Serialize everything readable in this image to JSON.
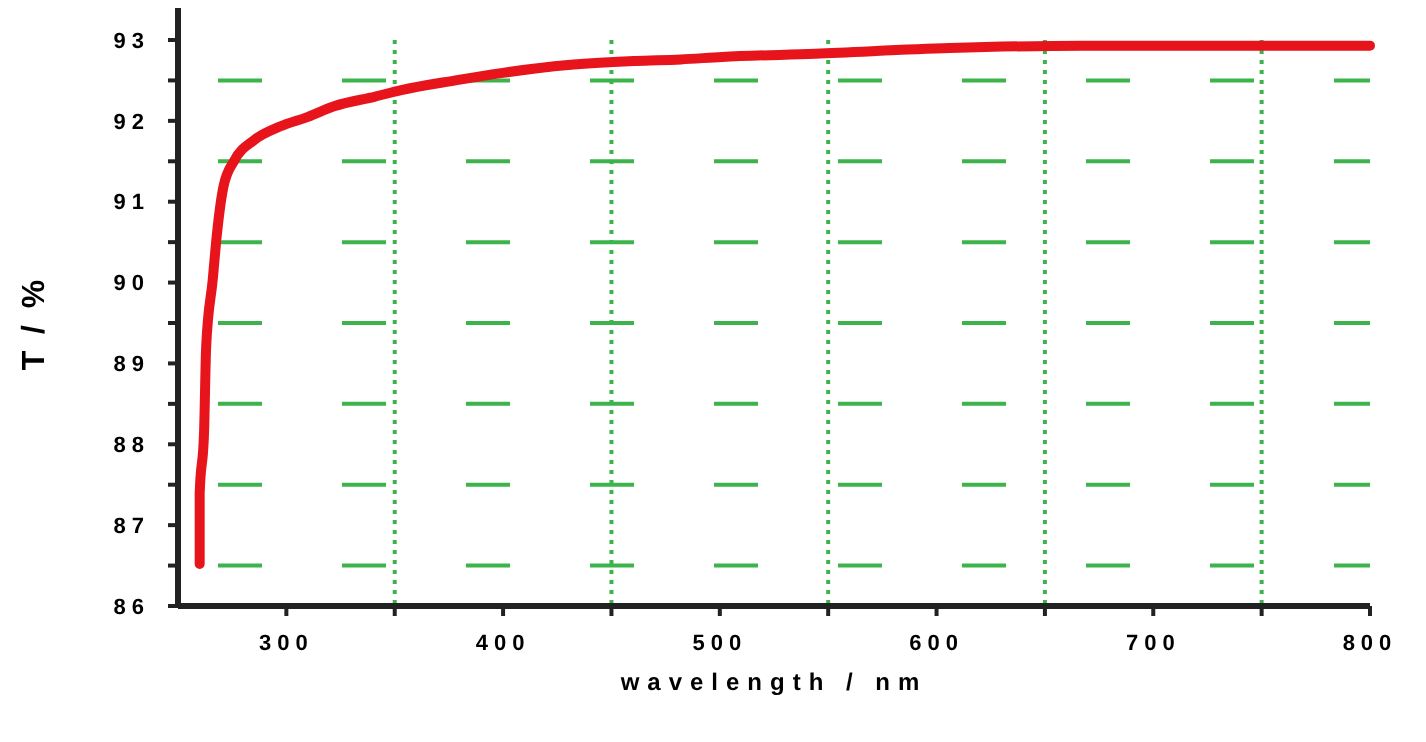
{
  "chart_data": {
    "type": "line",
    "xlabel": "wavelength / nm",
    "ylabel": "T / %",
    "xlim": [
      250,
      800
    ],
    "ylim": [
      86,
      93
    ],
    "xticks": [
      300,
      {
        "value": 350,
        "label": null
      },
      400,
      {
        "value": 450,
        "label": null
      },
      500,
      {
        "value": 550,
        "label": null
      },
      600,
      {
        "value": 650,
        "label": null
      },
      700,
      {
        "value": 750,
        "label": null
      },
      800
    ],
    "yticks": [
      86,
      {
        "value": 86.5,
        "label": null
      },
      87,
      {
        "value": 87.5,
        "label": null
      },
      88,
      {
        "value": 88.5,
        "label": null
      },
      89,
      {
        "value": 89.5,
        "label": null
      },
      90,
      {
        "value": 90.5,
        "label": null
      },
      91,
      {
        "value": 91.5,
        "label": null
      },
      92,
      {
        "value": 92.5,
        "label": null
      },
      93
    ],
    "grid": true,
    "marker": "none",
    "line_style": "solid",
    "series": [
      {
        "color": "#e8141c",
        "x": [
          260,
          260,
          262,
          263,
          266,
          268,
          271,
          276,
          285,
          297,
          310,
          322,
          341,
          353,
          378,
          399,
          430,
          461,
          482,
          501,
          544,
          606,
          668,
          729,
          800
        ],
        "values": [
          86.52,
          87.39,
          88.13,
          89.21,
          90.03,
          90.61,
          91.19,
          91.51,
          91.76,
          91.93,
          92.05,
          92.18,
          92.3,
          92.38,
          92.5,
          92.59,
          92.69,
          92.74,
          92.76,
          92.79,
          92.83,
          92.9,
          92.93,
          92.93,
          92.93
        ]
      }
    ]
  }
}
